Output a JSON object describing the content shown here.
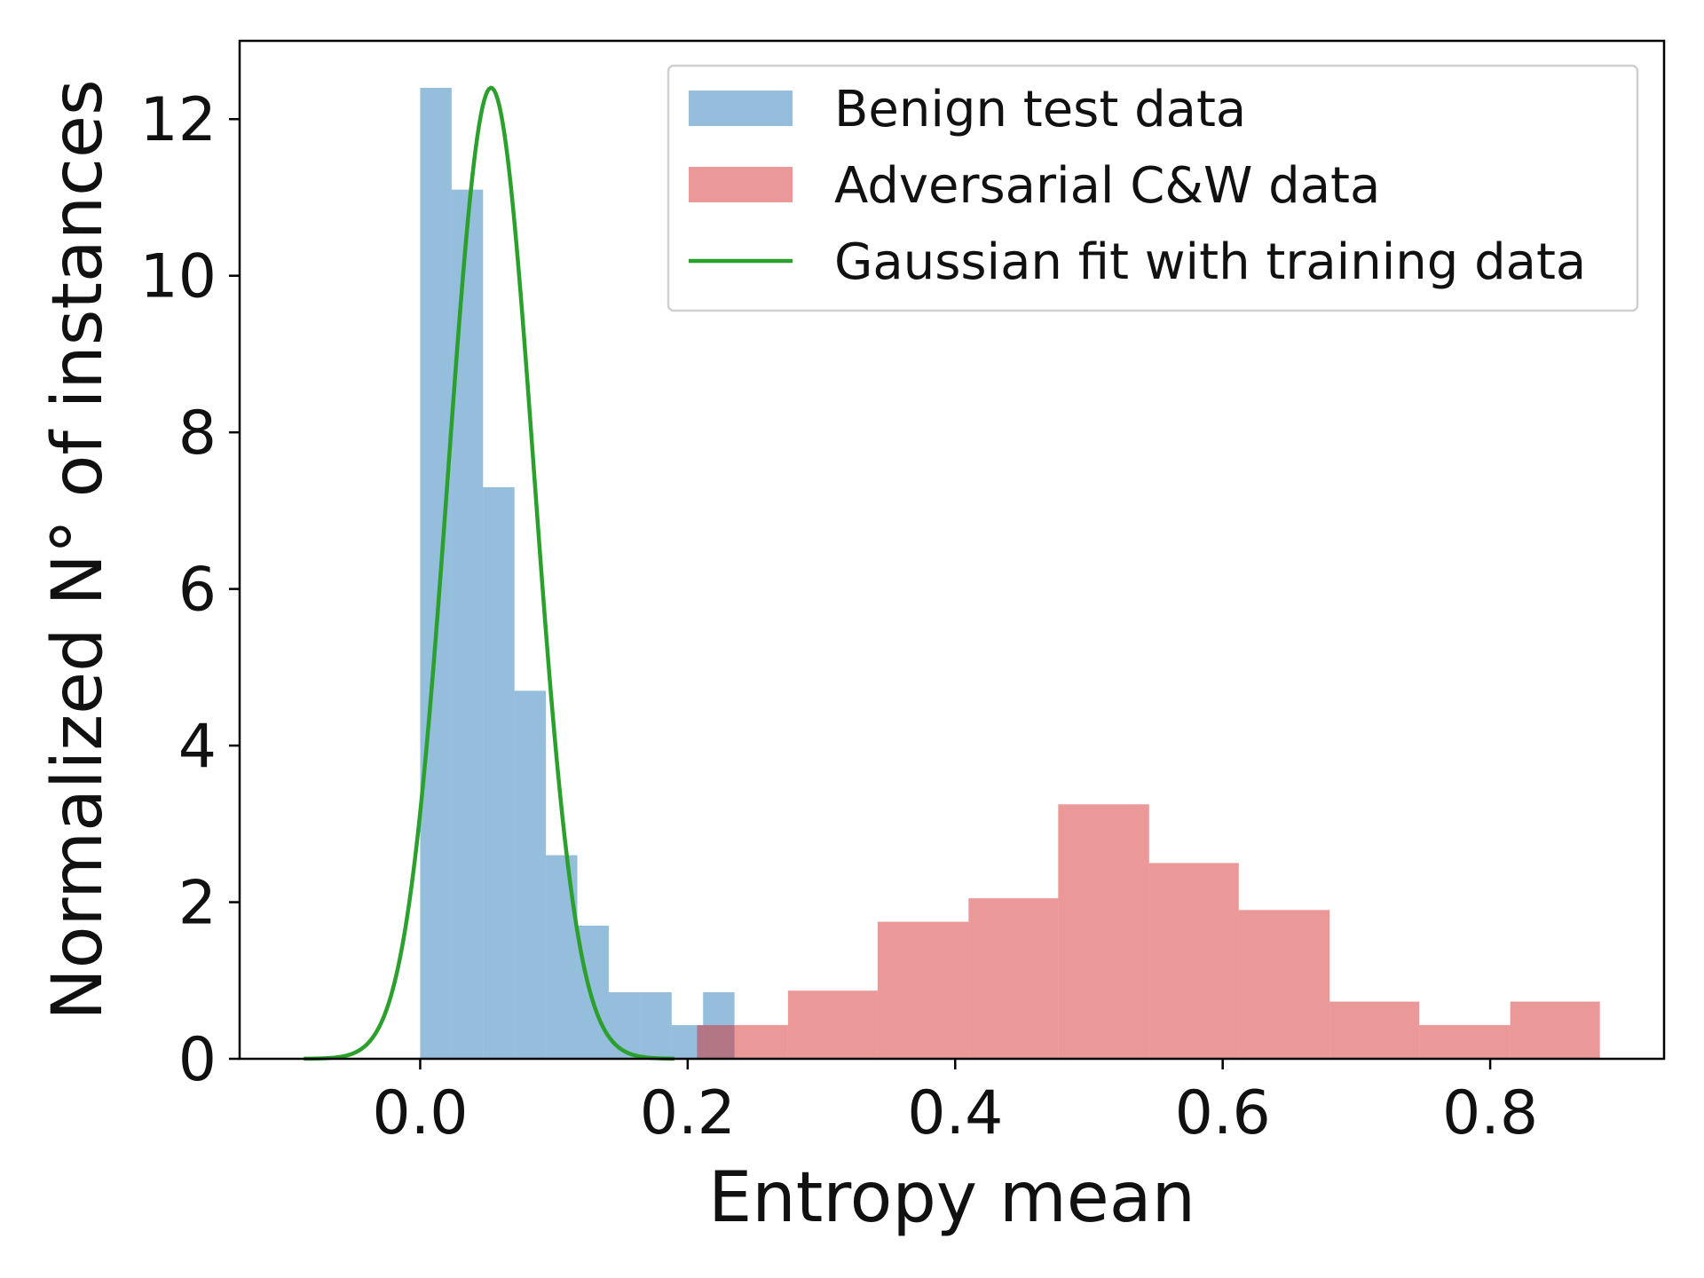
{
  "chart_data": {
    "type": "histogram",
    "xlabel": "Entropy mean",
    "ylabel": "Normalized N° of instances",
    "xlim": [
      -0.135,
      0.93
    ],
    "ylim": [
      0,
      13
    ],
    "xticks": [
      0.0,
      0.2,
      0.4,
      0.6,
      0.8
    ],
    "xtick_labels": [
      "0.0",
      "0.2",
      "0.4",
      "0.6",
      "0.8"
    ],
    "yticks": [
      0,
      2,
      4,
      6,
      8,
      10,
      12
    ],
    "ytick_labels": [
      "0",
      "2",
      "4",
      "6",
      "8",
      "10",
      "12"
    ],
    "grid": false,
    "legend_position": "top-right",
    "series": [
      {
        "name": "Benign test data",
        "kind": "histogram",
        "color": "#1f77b4",
        "opacity": 0.48,
        "bins": [
          {
            "x0": 0.0,
            "x1": 0.0235,
            "height": 12.4
          },
          {
            "x0": 0.0235,
            "x1": 0.047,
            "height": 11.1
          },
          {
            "x0": 0.047,
            "x1": 0.0705,
            "height": 7.3
          },
          {
            "x0": 0.0705,
            "x1": 0.094,
            "height": 4.7
          },
          {
            "x0": 0.094,
            "x1": 0.1175,
            "height": 2.6
          },
          {
            "x0": 0.1175,
            "x1": 0.141,
            "height": 1.7
          },
          {
            "x0": 0.141,
            "x1": 0.1645,
            "height": 0.85
          },
          {
            "x0": 0.1645,
            "x1": 0.188,
            "height": 0.85
          },
          {
            "x0": 0.188,
            "x1": 0.2115,
            "height": 0.43
          },
          {
            "x0": 0.2115,
            "x1": 0.235,
            "height": 0.85
          }
        ]
      },
      {
        "name": "Adversarial C&W data",
        "kind": "histogram",
        "color": "#d62728",
        "opacity": 0.48,
        "bins": [
          {
            "x0": 0.207,
            "x1": 0.275,
            "height": 0.43
          },
          {
            "x0": 0.275,
            "x1": 0.342,
            "height": 0.87
          },
          {
            "x0": 0.342,
            "x1": 0.41,
            "height": 1.75
          },
          {
            "x0": 0.41,
            "x1": 0.477,
            "height": 2.05
          },
          {
            "x0": 0.477,
            "x1": 0.545,
            "height": 3.25
          },
          {
            "x0": 0.545,
            "x1": 0.612,
            "height": 2.5
          },
          {
            "x0": 0.612,
            "x1": 0.68,
            "height": 1.9
          },
          {
            "x0": 0.68,
            "x1": 0.747,
            "height": 0.73
          },
          {
            "x0": 0.747,
            "x1": 0.815,
            "height": 0.43
          },
          {
            "x0": 0.815,
            "x1": 0.882,
            "height": 0.73
          }
        ]
      },
      {
        "name": "Gaussian fit with training data",
        "kind": "line",
        "color": "#2ca02c",
        "mean": 0.053,
        "std": 0.032,
        "peak": 12.4,
        "x_range": [
          -0.087,
          0.19
        ]
      }
    ]
  }
}
